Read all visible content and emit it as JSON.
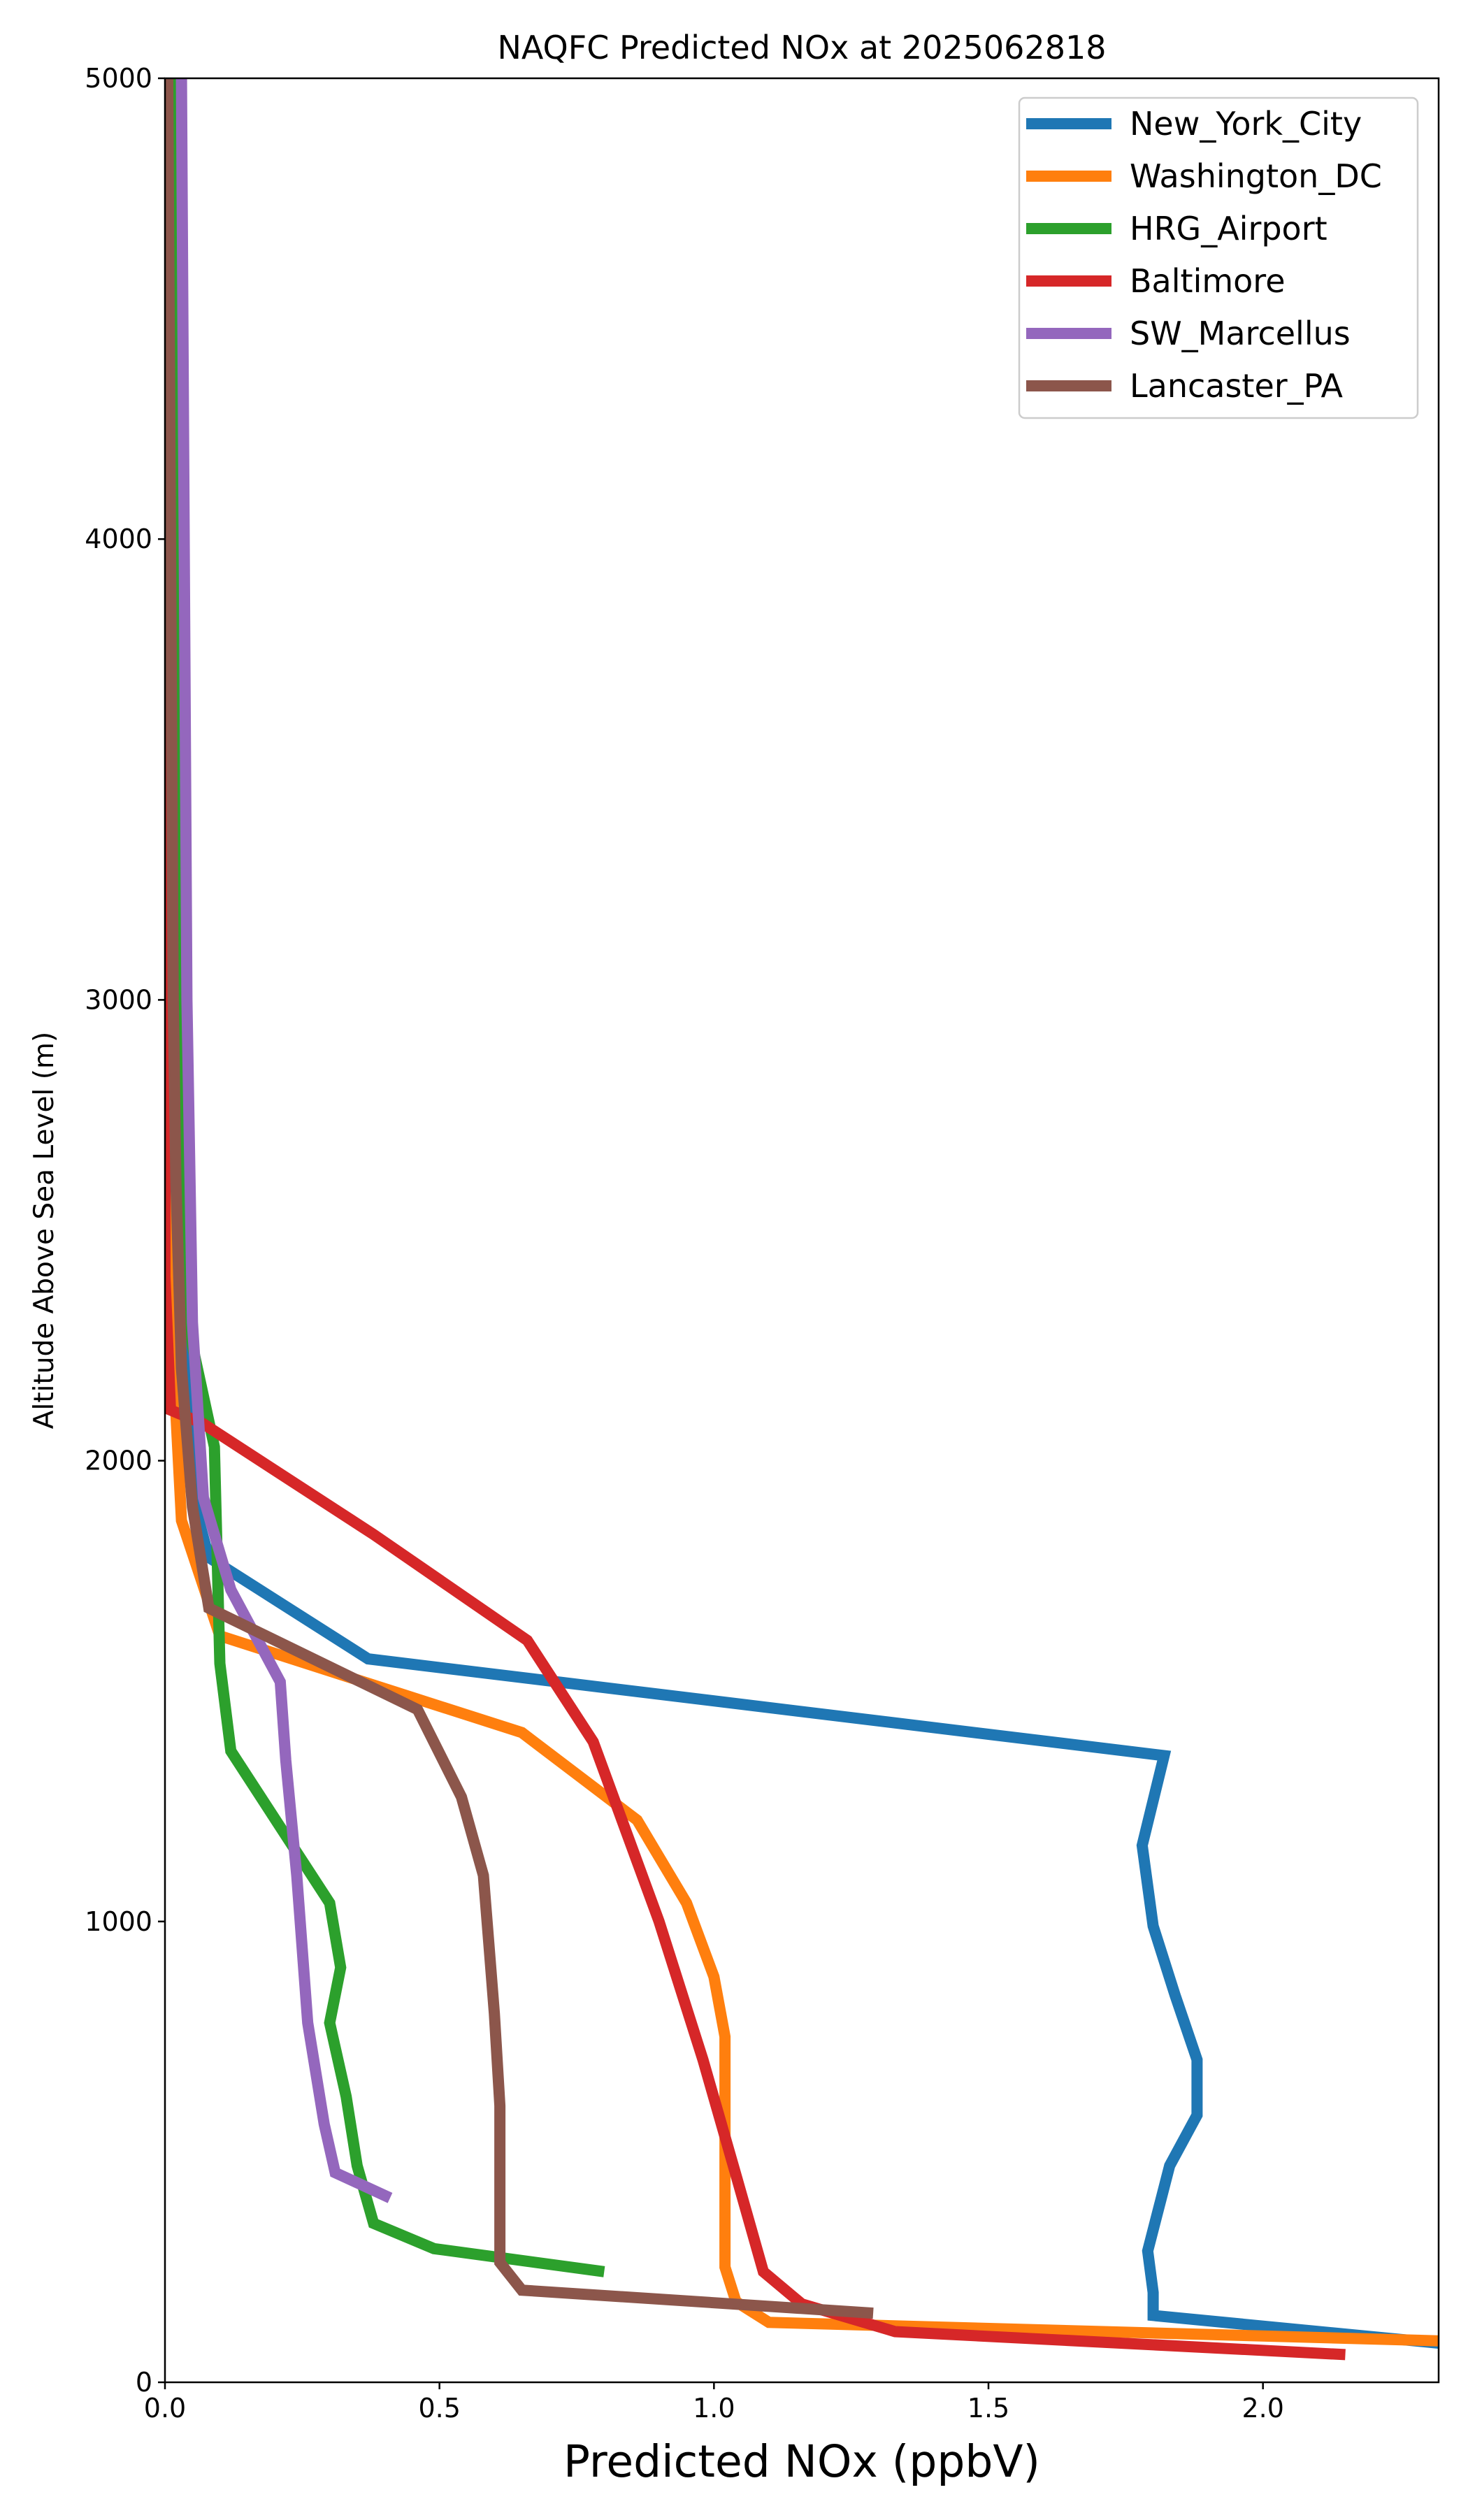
{
  "chart_data": {
    "type": "line",
    "title": "NAQFC Predicted NOx at 2025062818",
    "xlabel": "Predicted NOx (ppbV)",
    "ylabel": "Altitude Above Sea Level (m)",
    "xlim": [
      0.0,
      2.32
    ],
    "ylim": [
      0,
      5000
    ],
    "xticks": [
      0.0,
      0.5,
      1.0,
      1.5,
      2.0
    ],
    "xtick_labels": [
      "0.0",
      "0.5",
      "1.0",
      "1.5",
      "2.0"
    ],
    "yticks": [
      0,
      1000,
      2000,
      3000,
      4000,
      5000
    ],
    "ytick_labels": [
      "0",
      "1000",
      "2000",
      "3000",
      "4000",
      "5000"
    ],
    "grid": false,
    "legend_position": "top-right",
    "series": [
      {
        "name": "New_York_City",
        "color": "#1f77b4",
        "points": [
          [
            2.32,
            85
          ],
          [
            1.8,
            145
          ],
          [
            1.8,
            195
          ],
          [
            1.79,
            285
          ],
          [
            1.83,
            470
          ],
          [
            1.88,
            580
          ],
          [
            1.88,
            700
          ],
          [
            1.84,
            840
          ],
          [
            1.8,
            990
          ],
          [
            1.78,
            1165
          ],
          [
            1.82,
            1360
          ],
          [
            0.37,
            1570
          ],
          [
            0.08,
            1790
          ],
          [
            0.05,
            1920
          ],
          [
            0.04,
            2200
          ],
          [
            0.03,
            2600
          ],
          [
            0.02,
            3000
          ],
          [
            0.015,
            4000
          ],
          [
            0.01,
            5000
          ]
        ]
      },
      {
        "name": "Washington_DC",
        "color": "#ff7f0e",
        "points": [
          [
            2.32,
            90
          ],
          [
            1.1,
            130
          ],
          [
            1.04,
            175
          ],
          [
            1.02,
            250
          ],
          [
            1.02,
            550
          ],
          [
            1.02,
            750
          ],
          [
            1.0,
            880
          ],
          [
            0.95,
            1040
          ],
          [
            0.86,
            1220
          ],
          [
            0.65,
            1410
          ],
          [
            0.1,
            1620
          ],
          [
            0.03,
            1870
          ],
          [
            0.02,
            2100
          ],
          [
            0.02,
            2450
          ],
          [
            0.015,
            3000
          ],
          [
            0.01,
            4000
          ],
          [
            0.005,
            5000
          ]
        ]
      },
      {
        "name": "HRG_Airport",
        "color": "#2ca02c",
        "points": [
          [
            0.8,
            240
          ],
          [
            0.49,
            290
          ],
          [
            0.38,
            345
          ],
          [
            0.35,
            470
          ],
          [
            0.33,
            620
          ],
          [
            0.3,
            780
          ],
          [
            0.32,
            900
          ],
          [
            0.3,
            1040
          ],
          [
            0.12,
            1370
          ],
          [
            0.1,
            1560
          ],
          [
            0.09,
            2030
          ],
          [
            0.05,
            2250
          ],
          [
            0.03,
            2500
          ],
          [
            0.02,
            3000
          ],
          [
            0.015,
            4000
          ],
          [
            0.01,
            5000
          ]
        ]
      },
      {
        "name": "Baltimore",
        "color": "#d62728",
        "points": [
          [
            2.15,
            60
          ],
          [
            1.33,
            110
          ],
          [
            1.16,
            170
          ],
          [
            1.09,
            240
          ],
          [
            1.04,
            450
          ],
          [
            0.98,
            700
          ],
          [
            0.9,
            1000
          ],
          [
            0.78,
            1390
          ],
          [
            0.66,
            1610
          ],
          [
            0.38,
            1840
          ],
          [
            0.07,
            2080
          ],
          [
            0.01,
            2110
          ],
          [
            0.0,
            2400
          ],
          [
            0.0,
            3000
          ],
          [
            0.0,
            4000
          ],
          [
            0.0,
            5000
          ]
        ]
      },
      {
        "name": "SW_Marcellus",
        "color": "#9467bd",
        "points": [
          [
            0.41,
            400
          ],
          [
            0.31,
            455
          ],
          [
            0.29,
            560
          ],
          [
            0.26,
            780
          ],
          [
            0.24,
            1100
          ],
          [
            0.22,
            1350
          ],
          [
            0.21,
            1520
          ],
          [
            0.12,
            1720
          ],
          [
            0.07,
            1920
          ],
          [
            0.05,
            2300
          ],
          [
            0.04,
            3000
          ],
          [
            0.035,
            4000
          ],
          [
            0.03,
            5000
          ]
        ]
      },
      {
        "name": "Lancaster_PA",
        "color": "#8c564b",
        "points": [
          [
            1.29,
            150
          ],
          [
            0.65,
            200
          ],
          [
            0.61,
            260
          ],
          [
            0.61,
            600
          ],
          [
            0.6,
            800
          ],
          [
            0.59,
            950
          ],
          [
            0.58,
            1100
          ],
          [
            0.54,
            1270
          ],
          [
            0.46,
            1460
          ],
          [
            0.08,
            1680
          ],
          [
            0.05,
            1900
          ],
          [
            0.03,
            2200
          ],
          [
            0.02,
            2600
          ],
          [
            0.015,
            3000
          ],
          [
            0.01,
            4000
          ],
          [
            0.005,
            5000
          ]
        ]
      }
    ]
  }
}
